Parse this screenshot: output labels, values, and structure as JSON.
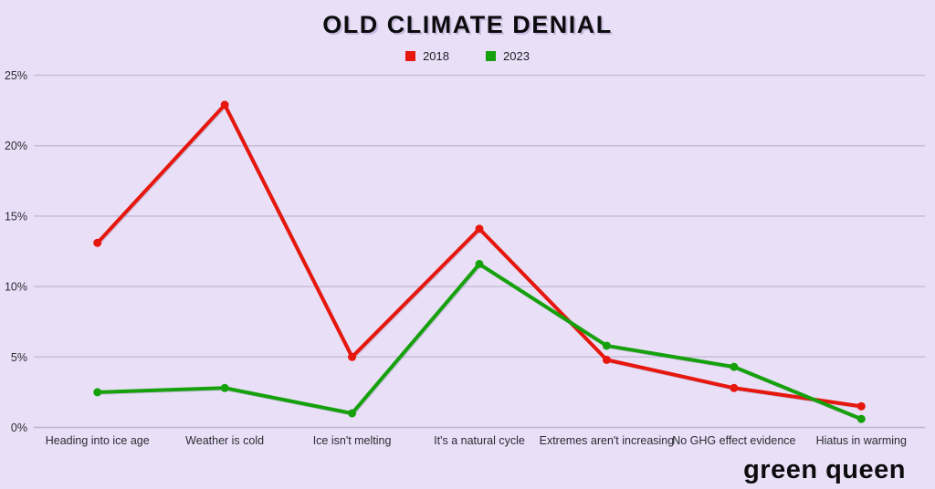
{
  "chart": {
    "title": "OLD CLIMATE DENIAL"
  },
  "chart_data": {
    "type": "line",
    "title": "OLD CLIMATE DENIAL",
    "categories": [
      "Heading into ice age",
      "Weather is cold",
      "Ice isn't melting",
      "It's a natural cycle",
      "Extremes aren't increasing",
      "No GHG effect evidence",
      "Hiatus in warming"
    ],
    "series": [
      {
        "name": "2018",
        "color": "#e6170c",
        "values": [
          13.1,
          22.9,
          5.0,
          14.1,
          4.8,
          2.8,
          1.5
        ]
      },
      {
        "name": "2023",
        "color": "#16a10c",
        "values": [
          2.5,
          2.8,
          1.0,
          11.6,
          5.8,
          4.3,
          0.6
        ]
      }
    ],
    "xlabel": "",
    "ylabel": "",
    "ylim": [
      0,
      25
    ],
    "ytick_step": 5,
    "ytick_labels": [
      "0%",
      "5%",
      "10%",
      "15%",
      "20%",
      "25%"
    ],
    "grid": true,
    "legend_position": "top",
    "marker": "circle"
  },
  "footer": {
    "logo_text": "green queen"
  },
  "colors": {
    "background": "#e9e0f8",
    "gridline": "#c6bdd7",
    "axis_line": "#bcb2cf",
    "axis_text": "#2b2b31",
    "title_text": "#0c0c0e",
    "series_2018": "#e6170c",
    "series_2023": "#16a10c"
  }
}
